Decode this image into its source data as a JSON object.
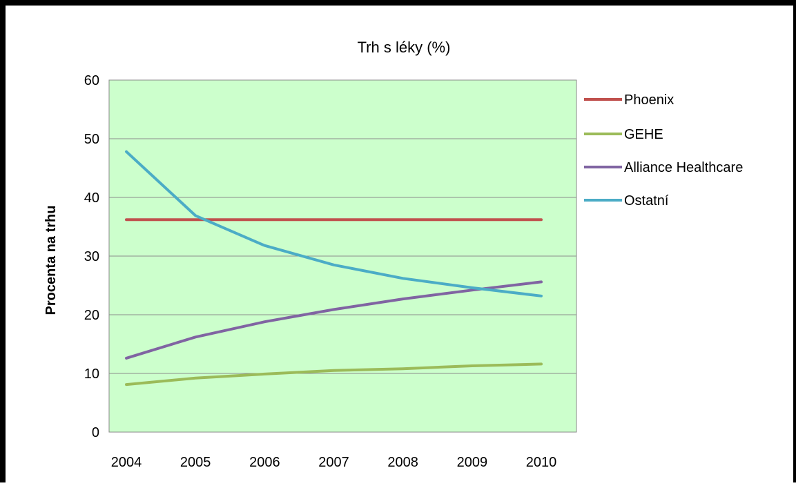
{
  "chart_data": {
    "type": "line",
    "title": "Trh  s léky (%)",
    "xlabel": "",
    "ylabel": "Procenta na trhu",
    "categories": [
      "2004",
      "2005",
      "2006",
      "2007",
      "2008",
      "2009",
      "2010"
    ],
    "ylim": [
      0,
      60
    ],
    "yticks": [
      0,
      10,
      20,
      30,
      40,
      50,
      60
    ],
    "ytick_labels": [
      "0",
      "10",
      "20",
      "30",
      "40",
      "50",
      "60"
    ],
    "grid": true,
    "plot_background": "#ccffcc",
    "legend_position": "right",
    "series": [
      {
        "name": "Phoenix",
        "color": "#c0504d",
        "values": [
          36.2,
          36.2,
          36.2,
          36.2,
          36.2,
          36.2,
          36.2
        ]
      },
      {
        "name": "GEHE",
        "color": "#9bbb59",
        "values": [
          8.1,
          9.2,
          9.9,
          10.5,
          10.8,
          11.3,
          11.6
        ]
      },
      {
        "name": "Alliance Healthcare",
        "color": "#8064a2",
        "values": [
          12.6,
          16.2,
          18.8,
          20.9,
          22.7,
          24.2,
          25.6
        ]
      },
      {
        "name": "Ostatní",
        "color": "#4bacc6",
        "values": [
          47.8,
          36.9,
          31.8,
          28.5,
          26.2,
          24.6,
          23.2
        ]
      }
    ]
  }
}
